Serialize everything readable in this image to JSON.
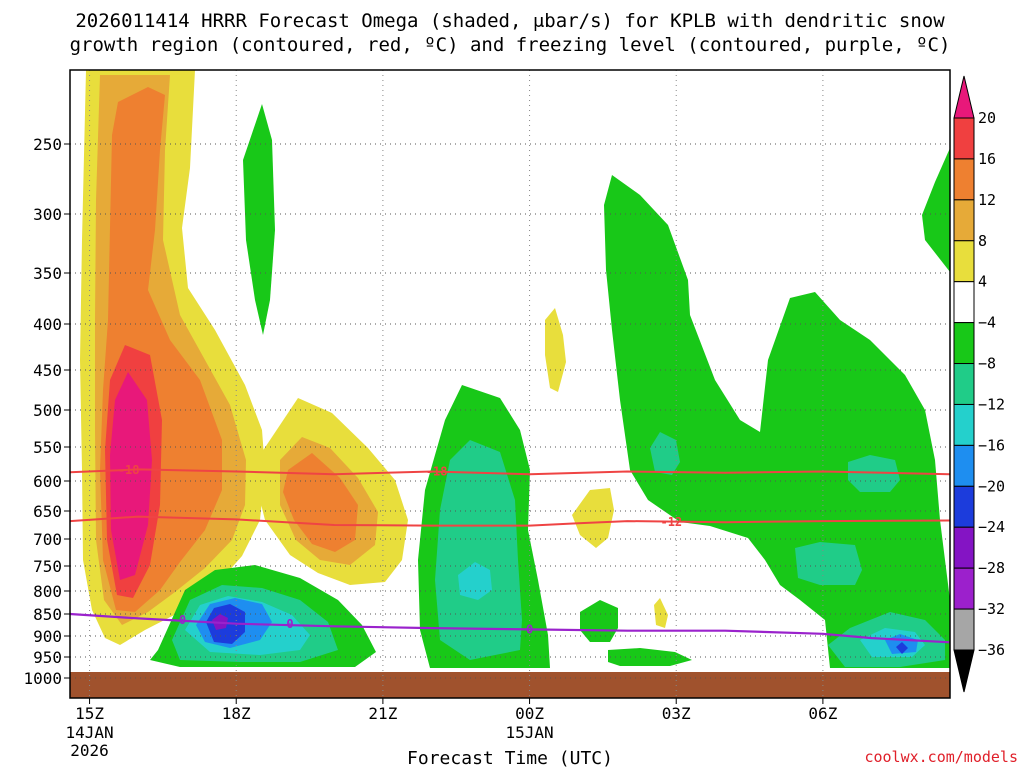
{
  "chart_data": {
    "type": "heatmap",
    "title_lines": [
      "2026011414 HRRR Forecast Omega (shaded, μbar/s) for KPLB with dendritic snow",
      "growth region (contoured, red, ºC) and freezing level (contoured, purple, ºC)"
    ],
    "xlabel": "Forecast Time (UTC)",
    "credit": "coolwx.com/models",
    "y_axis": {
      "scale": "pressure (hPa), inverted",
      "ticks": [
        250,
        300,
        350,
        400,
        450,
        500,
        550,
        600,
        650,
        700,
        750,
        800,
        850,
        900,
        950,
        1000
      ],
      "ylim": [
        1000,
        200
      ]
    },
    "x_axis": {
      "xlim_hours_utc": [
        14.6,
        32.6
      ],
      "ticks": [
        {
          "hour": 15,
          "label": "15Z",
          "sub1": "14JAN",
          "sub2": "2026"
        },
        {
          "hour": 18,
          "label": "18Z",
          "sub1": "",
          "sub2": ""
        },
        {
          "hour": 21,
          "label": "21Z",
          "sub1": "",
          "sub2": ""
        },
        {
          "hour": 24,
          "label": "00Z",
          "sub1": "15JAN",
          "sub2": ""
        },
        {
          "hour": 27,
          "label": "03Z",
          "sub1": "",
          "sub2": ""
        },
        {
          "hour": 30,
          "label": "06Z",
          "sub1": "",
          "sub2": ""
        }
      ]
    },
    "colorbar": {
      "labels": [
        "20",
        "16",
        "12",
        "8",
        "4",
        "−4",
        "−8",
        "−12",
        "−16",
        "−20",
        "−24",
        "−28",
        "−32",
        "−36"
      ],
      "top_color": "#e8187a",
      "bottom_color": "#000000",
      "bins": [
        "#f04040",
        "#ee8030",
        "#e6aa38",
        "#e8de3c",
        "#ffffff",
        "#18c818",
        "#20cc88",
        "#24d0cc",
        "#1e8ef0",
        "#1c3cdc",
        "#8414c4",
        "#9c20cc",
        "#a6a6a6"
      ]
    },
    "contours": {
      "dgz_red_color": "#ef4444",
      "freezing_purple_color": "#9a22cc",
      "dgz_labels": [
        "-18",
        "-18",
        "-12"
      ],
      "freezing_labels": [
        "0",
        "0",
        "0"
      ],
      "dgz_minus18": [
        [
          14.6,
          587
        ],
        [
          16,
          583
        ],
        [
          18,
          586
        ],
        [
          20,
          590
        ],
        [
          22,
          586
        ],
        [
          24,
          590
        ],
        [
          26,
          586
        ],
        [
          28,
          588
        ],
        [
          30,
          586
        ],
        [
          32.6,
          590
        ]
      ],
      "dgz_minus12": [
        [
          14.6,
          668
        ],
        [
          16,
          660
        ],
        [
          18,
          665
        ],
        [
          20,
          675
        ],
        [
          22,
          676
        ],
        [
          24,
          676
        ],
        [
          25,
          672
        ],
        [
          26,
          668
        ],
        [
          28,
          670
        ],
        [
          30,
          668
        ],
        [
          32.6,
          667
        ]
      ],
      "freezing_0": [
        [
          14.6,
          850
        ],
        [
          16,
          860
        ],
        [
          18,
          872
        ],
        [
          20,
          878
        ],
        [
          22,
          882
        ],
        [
          24,
          885
        ],
        [
          26,
          888
        ],
        [
          28,
          888
        ],
        [
          30,
          895
        ],
        [
          31,
          905
        ],
        [
          32.6,
          915
        ]
      ]
    },
    "ground_color": "#a0522d"
  }
}
